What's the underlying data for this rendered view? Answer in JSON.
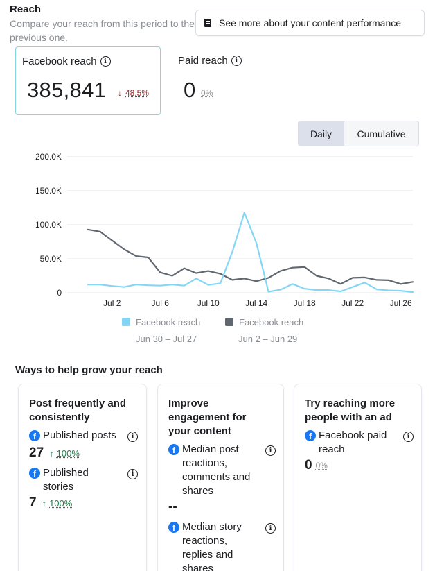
{
  "reach": {
    "title": "Reach",
    "subtitle": "Compare your reach from this period to the previous one.",
    "see_more": "See more about your content performance",
    "facebook": {
      "label": "Facebook reach",
      "value": "385,841",
      "change_arrow": "↓",
      "change": "48.5%"
    },
    "paid": {
      "label": "Paid reach",
      "value": "0",
      "change": "0%"
    }
  },
  "toggle": {
    "daily": "Daily",
    "cumulative": "Cumulative",
    "selected": "Daily"
  },
  "chart_data": {
    "type": "line",
    "y_ticks": [
      "200.0K",
      "150.0K",
      "100.0K",
      "50.0K",
      "0"
    ],
    "ylim": [
      0,
      200000
    ],
    "x_tick_labels": [
      "Jul 2",
      "Jul 6",
      "Jul 10",
      "Jul 14",
      "Jul 18",
      "Jul 22",
      "Jul 26"
    ],
    "x_tick_days": [
      3,
      7,
      11,
      15,
      19,
      23,
      27
    ],
    "grid": true,
    "legend_position": "bottom",
    "series": [
      {
        "name": "Facebook reach",
        "period": "Jun 30 – Jul 27",
        "color": "#84d6f5",
        "values": [
          12000,
          12000,
          10000,
          8500,
          12000,
          11000,
          10500,
          12000,
          10500,
          21000,
          11500,
          14000,
          60000,
          118000,
          73000,
          1500,
          4500,
          13000,
          6000,
          4000,
          4000,
          2000,
          8500,
          15000,
          5000,
          3500,
          3000,
          1000
        ]
      },
      {
        "name": "Facebook reach",
        "period": "Jun 2 – Jun 29",
        "color": "#606770",
        "values": [
          93000,
          90000,
          77000,
          64000,
          54000,
          52000,
          30000,
          25000,
          36000,
          29000,
          32000,
          28000,
          19000,
          21000,
          17000,
          22000,
          32000,
          37000,
          38000,
          25000,
          21000,
          13000,
          22000,
          22500,
          19000,
          18500,
          13000,
          16000
        ]
      }
    ]
  },
  "ways": {
    "title": "Ways to help grow your reach",
    "cards": [
      {
        "title": "Post frequently and consistently",
        "stats": [
          {
            "label": "Published posts",
            "value": "27",
            "arrow": "↑",
            "change": "100%"
          },
          {
            "label": "Published stories",
            "value": "7",
            "arrow": "↑",
            "change": "100%"
          }
        ]
      },
      {
        "title": "Improve engagement for your content",
        "stats": [
          {
            "label": "Median post reactions, comments and shares",
            "value": "--"
          },
          {
            "label": "Median story reactions, replies and shares",
            "value": ""
          }
        ]
      },
      {
        "title": "Try reaching more people with an ad",
        "stats": [
          {
            "label": "Facebook paid reach",
            "value": "0",
            "change": "0%"
          }
        ]
      }
    ]
  }
}
